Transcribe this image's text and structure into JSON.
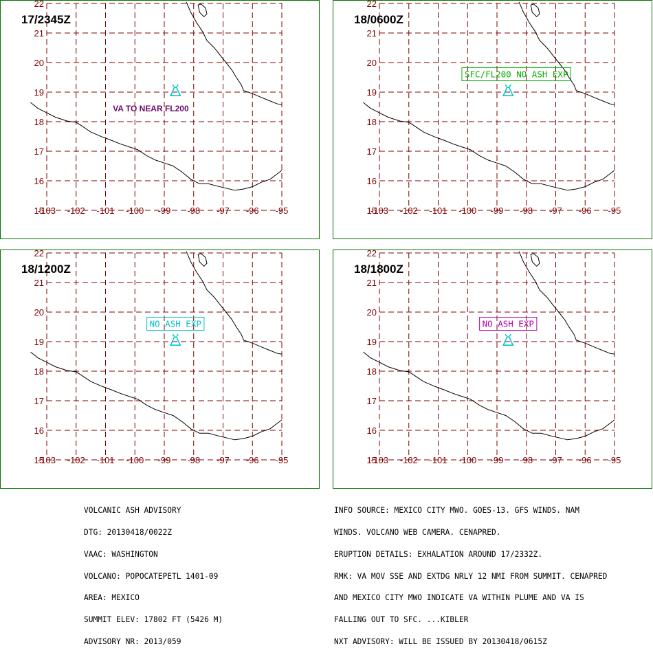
{
  "colors": {
    "frame": "#007000",
    "grid": "#800000",
    "coast": "#000000",
    "volcano": "#00c8d2"
  },
  "volcano_icon": "volcano-triangle-icon",
  "map": {
    "lat_ticks": [
      "22",
      "21",
      "20",
      "19",
      "18",
      "17",
      "16",
      "15"
    ],
    "lon_ticks": [
      "-103",
      "-102",
      "-101",
      "-100",
      "-99",
      "-98",
      "-97",
      "-96",
      "-95"
    ],
    "volcano_location": {
      "lon": -98.62,
      "lat": 19.02
    }
  },
  "panels": [
    {
      "time": "17/2345Z",
      "annotation": {
        "text": "VA TO NEAR FL200",
        "boxed": false,
        "color": "#6a0a6a",
        "lon": -100.75,
        "lat": 18.35
      }
    },
    {
      "time": "18/0600Z",
      "annotation": {
        "text": "SFC/FL200 NO ASH EXP",
        "boxed": true,
        "color": "#00b000",
        "lon": -100.1,
        "lat": 19.5
      }
    },
    {
      "time": "18/1200Z",
      "annotation": {
        "text": "NO ASH EXP",
        "boxed": true,
        "color": "#00c0c8",
        "lon": -99.5,
        "lat": 19.5
      }
    },
    {
      "time": "18/1800Z",
      "annotation": {
        "text": "NO ASH EXP",
        "boxed": true,
        "color": "#b000b0",
        "lon": -99.5,
        "lat": 19.5
      }
    }
  ],
  "advisory_left": [
    "VOLCANIC ASH ADVISORY",
    "DTG: 20130418/0022Z",
    "VAAC: WASHINGTON",
    "VOLCANO: POPOCATEPETL 1401-09",
    "AREA: MEXICO",
    "SUMMIT ELEV: 17802 FT (5426 M)",
    "ADVISORY NR: 2013/059"
  ],
  "advisory_right": [
    "INFO SOURCE: MEXICO CITY MWO. GOES-13. GFS WINDS. NAM",
    "WINDS. VOLCANO WEB CAMERA. CENAPRED.",
    "ERUPTION DETAILS: EXHALATION AROUND 17/2332Z.",
    "RMK: VA MOV SSE AND EXTDG NRLY 12 NMI FROM SUMMIT. CENAPRED",
    "AND MEXICO CITY MWO INDICATE VA WITHIN PLUME AND VA IS",
    "FALLING OUT TO SFC. ...KIBLER",
    "NXT ADVISORY: WILL BE ISSUED BY 20130418/0615Z"
  ]
}
